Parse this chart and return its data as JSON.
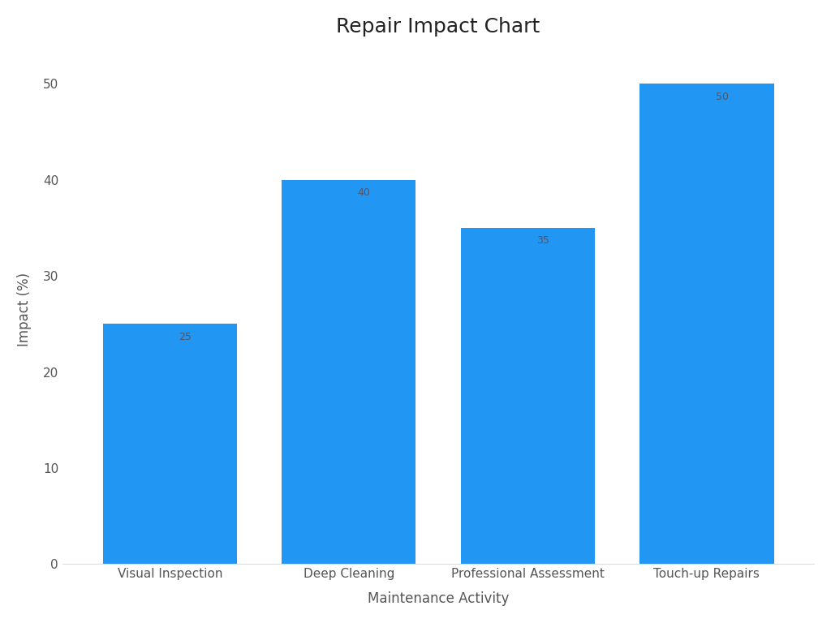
{
  "title": "Repair Impact Chart",
  "xlabel": "Maintenance Activity",
  "ylabel": "Impact (%)",
  "categories": [
    "Visual Inspection",
    "Deep Cleaning",
    "Professional Assessment",
    "Touch-up Repairs"
  ],
  "values": [
    25,
    40,
    35,
    50
  ],
  "bar_color": "#2196F3",
  "ylim": [
    0,
    53
  ],
  "yticks": [
    0,
    10,
    20,
    30,
    40,
    50
  ],
  "bar_width": 0.75,
  "title_fontsize": 18,
  "label_fontsize": 12,
  "tick_fontsize": 11,
  "annotation_fontsize": 9,
  "annotation_color": "#555566",
  "background_color": "#ffffff",
  "spine_color": "#dddddd"
}
